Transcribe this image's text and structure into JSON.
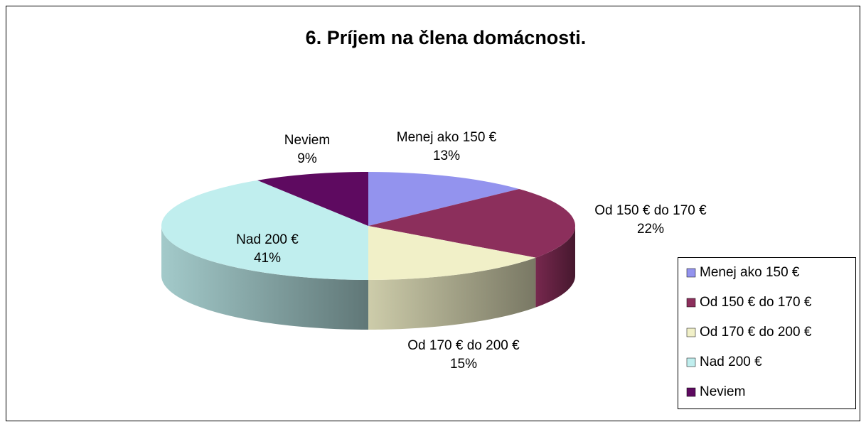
{
  "chart_data": {
    "type": "pie3d",
    "title": "6. Príjem na člena domácnosti.",
    "categories": [
      "Menej ako 150 €",
      "Od 150 € do 170 €",
      "Od 170 € do 200 €",
      "Nad 200 €",
      "Neviem"
    ],
    "values": [
      13,
      22,
      15,
      41,
      9
    ],
    "value_labels": [
      "13%",
      "22%",
      "15%",
      "41%",
      "9%"
    ],
    "colors": [
      "#9393ee",
      "#8c2f5c",
      "#f1f0c8",
      "#c0eeee",
      "#5e0a60"
    ],
    "legend": "right"
  }
}
